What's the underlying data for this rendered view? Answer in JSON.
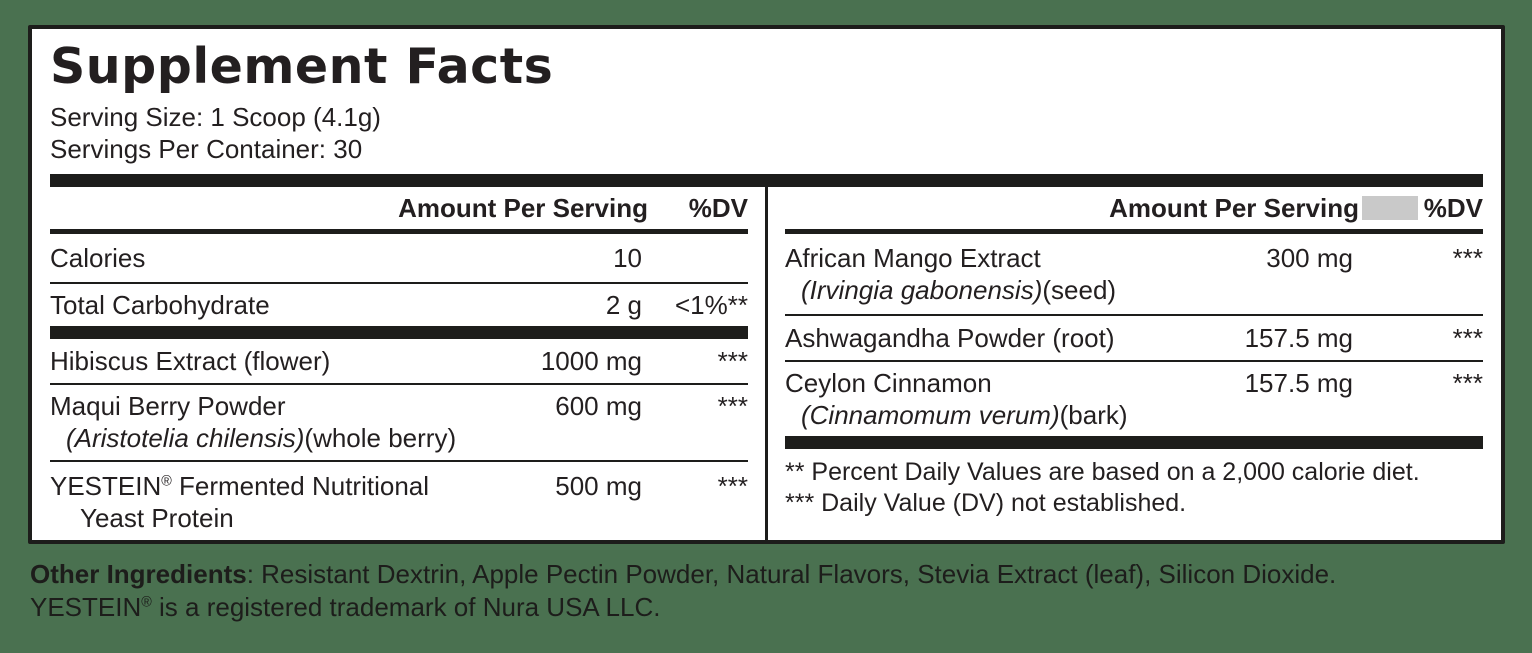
{
  "colors": {
    "background": "#4a7150",
    "panel": "#ffffff",
    "ink": "#231f20",
    "rule": "#1d1d1b",
    "gray_box": "#c9c9c9"
  },
  "label": {
    "title": "Supplement Facts",
    "serving_size": "Serving Size: 1 Scoop (4.1g)",
    "servings_per_container": "Servings Per Container: 30"
  },
  "left_table": {
    "header": {
      "amount_label": "Amount Per Serving",
      "dv_label": "%DV"
    },
    "rows": [
      {
        "name": "Calories",
        "amount": "10",
        "dv": ""
      },
      {
        "name": "Total Carbohydrate",
        "amount": "2 g",
        "dv": "<1%**"
      },
      {
        "name": "Hibiscus Extract (flower)",
        "amount": "1000 mg",
        "dv": "***"
      },
      {
        "name": "Maqui Berry Powder",
        "sub_italic": "(Aristotelia chilensis)",
        "sub_plain": "(whole berry)",
        "amount": "600 mg",
        "dv": "***"
      },
      {
        "name_pre": "YESTEIN",
        "name_reg_mark": "®",
        "name_post": " Fermented Nutritional",
        "sub_plain": "Yeast Protein",
        "amount": "500 mg",
        "dv": "***"
      }
    ]
  },
  "right_table": {
    "header": {
      "amount_label": "Amount Per Serving",
      "dv_label": "%DV"
    },
    "rows": [
      {
        "name": "African Mango Extract",
        "sub_italic": "(Irvingia gabonensis)",
        "sub_plain": "(seed)",
        "amount": "300 mg",
        "dv": "***"
      },
      {
        "name": "Ashwagandha Powder (root)",
        "amount": "157.5 mg",
        "dv": "***"
      },
      {
        "name": "Ceylon Cinnamon",
        "sub_italic": "(Cinnamomum verum)",
        "sub_plain": "(bark)",
        "amount": "157.5 mg",
        "dv": "***"
      }
    ],
    "footnotes": [
      "** Percent Daily Values are based on a 2,000 calorie diet.",
      "*** Daily Value (DV) not established."
    ]
  },
  "footer": {
    "other_ingredients_label": "Other Ingredients",
    "other_ingredients_text": ": Resistant Dextrin, Apple Pectin Powder, Natural Flavors, Stevia Extract (leaf), Silicon Dioxide.",
    "trademark_pre": "YESTEIN",
    "trademark_reg_mark": "®",
    "trademark_post": " is a registered trademark of Nura USA LLC."
  }
}
